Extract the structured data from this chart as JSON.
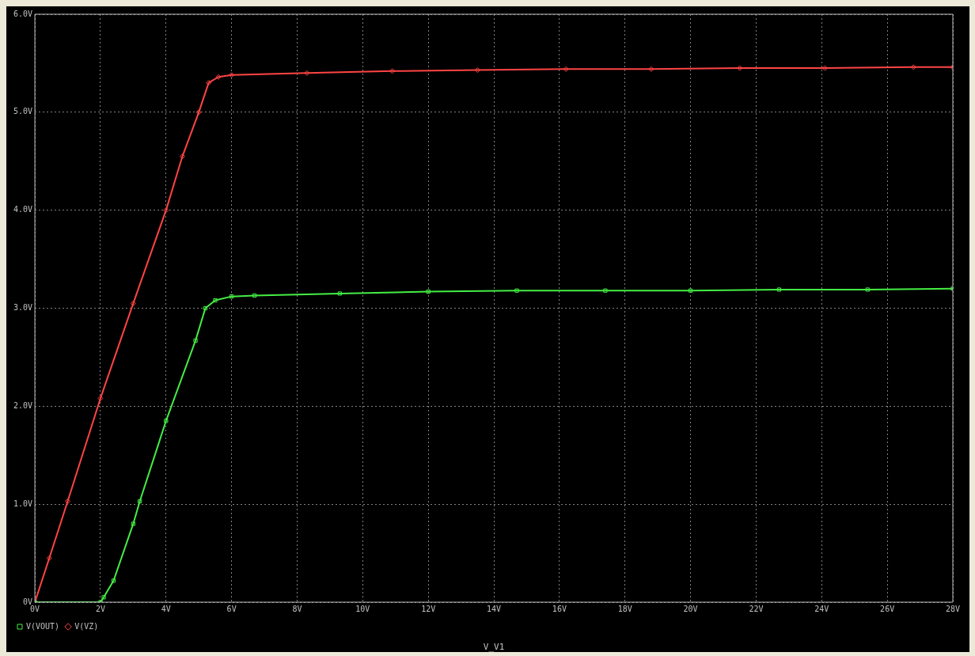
{
  "chart_data": {
    "type": "line",
    "xlabel": "V_V1",
    "xlim": [
      0,
      28
    ],
    "ylim": [
      0,
      6
    ],
    "xticks": [
      {
        "value": 0,
        "label": "0V"
      },
      {
        "value": 2,
        "label": "2V"
      },
      {
        "value": 4,
        "label": "4V"
      },
      {
        "value": 6,
        "label": "6V"
      },
      {
        "value": 8,
        "label": "8V"
      },
      {
        "value": 10,
        "label": "10V"
      },
      {
        "value": 12,
        "label": "12V"
      },
      {
        "value": 14,
        "label": "14V"
      },
      {
        "value": 16,
        "label": "16V"
      },
      {
        "value": 18,
        "label": "18V"
      },
      {
        "value": 20,
        "label": "20V"
      },
      {
        "value": 22,
        "label": "22V"
      },
      {
        "value": 24,
        "label": "24V"
      },
      {
        "value": 26,
        "label": "26V"
      },
      {
        "value": 28,
        "label": "28V"
      }
    ],
    "yticks": [
      {
        "value": 0,
        "label": "0V"
      },
      {
        "value": 1,
        "label": "1.0V"
      },
      {
        "value": 2,
        "label": "2.0V"
      },
      {
        "value": 3,
        "label": "3.0V"
      },
      {
        "value": 4,
        "label": "4.0V"
      },
      {
        "value": 5,
        "label": "5.0V"
      },
      {
        "value": 6,
        "label": "6.0V"
      }
    ],
    "grid": true,
    "legend": "bottom left",
    "line_style": "solid",
    "series": [
      {
        "name": "V(VOUT)",
        "color": "#44ee44",
        "marker": "square",
        "x": [
          0,
          2,
          2.1,
          2.4,
          3,
          3.2,
          4,
          4.9,
          5.2,
          5.5,
          6,
          6.7,
          9.3,
          12,
          14.7,
          17.4,
          20,
          22.7,
          25.4,
          28
        ],
        "values": [
          0,
          0,
          0.05,
          0.22,
          0.8,
          1.03,
          1.85,
          2.67,
          3.0,
          3.08,
          3.12,
          3.13,
          3.15,
          3.17,
          3.18,
          3.18,
          3.18,
          3.19,
          3.19,
          3.2
        ]
      },
      {
        "name": "V(VZ)",
        "color": "#ff4444",
        "marker": "diamond",
        "x": [
          0,
          0.44,
          1,
          2,
          3,
          4,
          4.5,
          5,
          5.3,
          5.6,
          6,
          8.3,
          10.9,
          13.5,
          16.2,
          18.8,
          21.5,
          24.1,
          26.8,
          28
        ],
        "values": [
          0,
          0.45,
          1.03,
          2.08,
          3.05,
          4.0,
          4.55,
          5.0,
          5.3,
          5.36,
          5.38,
          5.4,
          5.42,
          5.43,
          5.44,
          5.44,
          5.45,
          5.45,
          5.46,
          5.46
        ]
      }
    ]
  }
}
